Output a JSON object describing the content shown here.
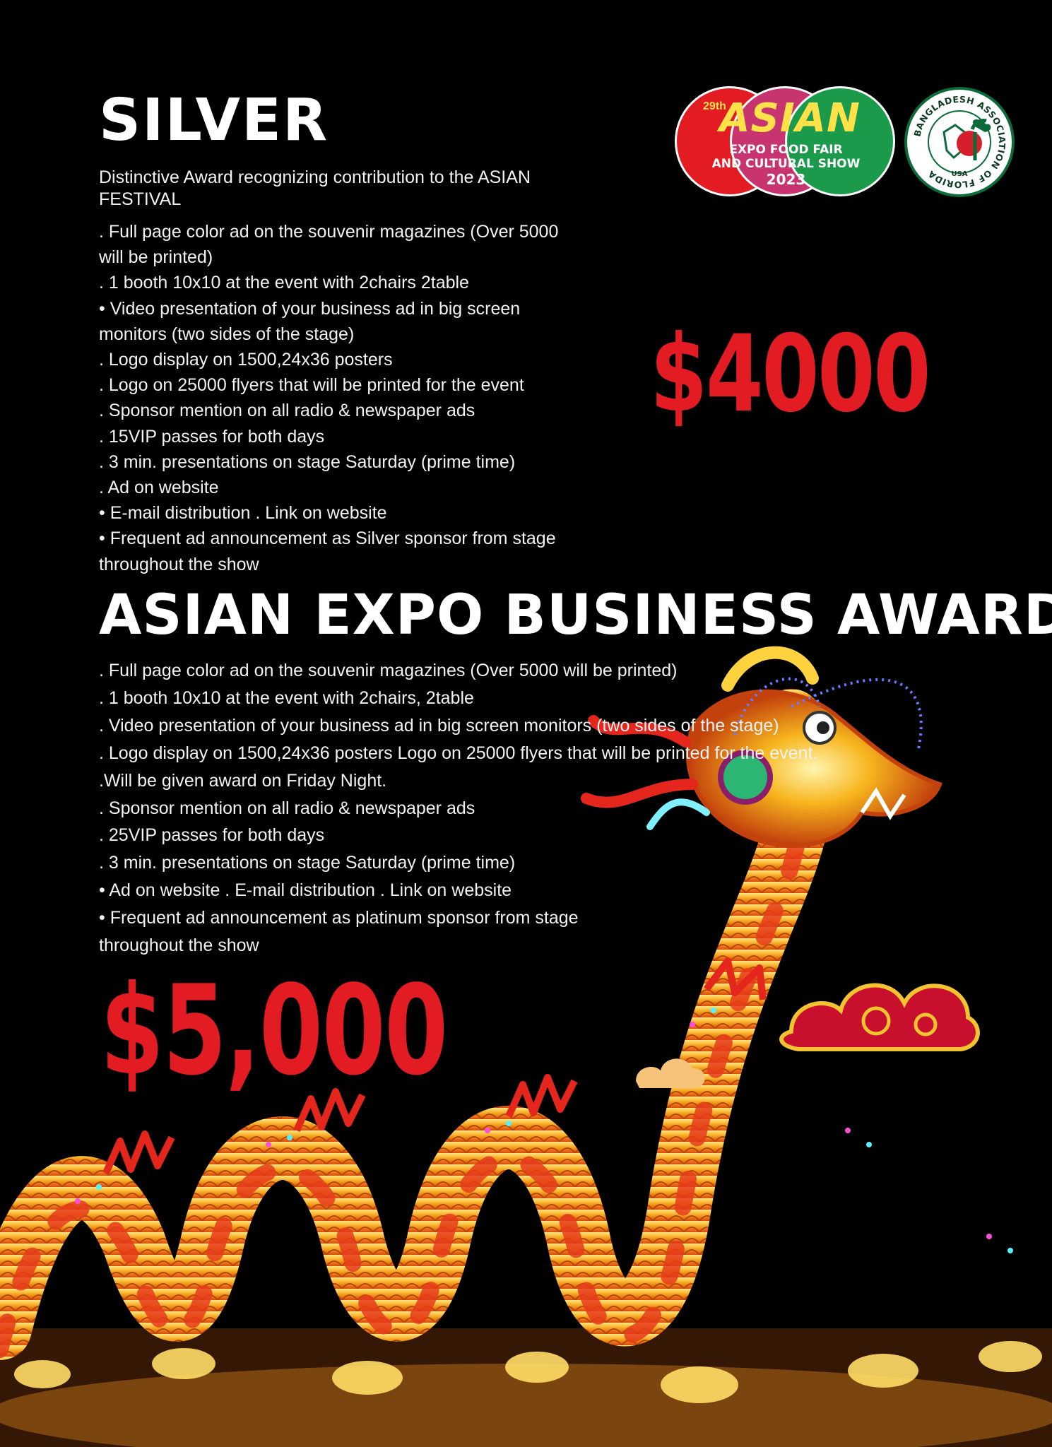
{
  "silver": {
    "title": "SILVER",
    "subtitle": "Distinctive Award recognizing contribution to the ASIAN FESTIVAL",
    "benefits": [
      ". Full page color ad on the souvenir magazines (Over 5000 will be printed)",
      ". 1 booth 10x10 at the event with 2chairs 2table",
      "• Video presentation of your business ad in big screen monitors (two sides of the stage)",
      ". Logo display on 1500,24x36 posters",
      ". Logo on 25000 flyers that will be printed for the event",
      ". Sponsor mention on all radio & newspaper ads",
      ". 15VIP passes for both days",
      ". 3 min. presentations on stage Saturday (prime time)",
      ". Ad on website",
      "• E-mail distribution . Link on website",
      "• Frequent ad announcement as Silver sponsor from stage throughout the show"
    ],
    "price": "$4000"
  },
  "expo_logo": {
    "edition": "29th",
    "name": "ASIAN",
    "line1": "EXPO FOOD FAIR",
    "line2": "AND CULTURAL SHOW",
    "year": "2023"
  },
  "association_logo": {
    "text": "BANGLADESH ASSOCIATION OF FLORIDA",
    "country": "USA"
  },
  "business_award": {
    "title": "ASIAN EXPO BUSINESS AWARD",
    "benefits": [
      ". Full page color ad on the souvenir magazines (Over 5000 will be printed)",
      ". 1 booth 10x10 at the event with 2chairs, 2table",
      ". Video presentation of your business ad in big screen monitors (two sides of the stage)",
      ". Logo display on 1500,24x36 posters Logo on 25000 flyers that will be printed for the event.",
      ".Will be given award on Friday Night.",
      ". Sponsor mention on all radio & newspaper ads",
      ". 25VIP passes for both days",
      ". 3 min. presentations on stage Saturday (prime time)",
      "• Ad on website  . E-mail distribution . Link on website",
      "• Frequent ad announcement as platinum sponsor from stage throughout the show"
    ],
    "price": "$5,000"
  },
  "colors": {
    "background": "#000000",
    "accent_red": "#e31b23",
    "text": "#ffffff"
  }
}
